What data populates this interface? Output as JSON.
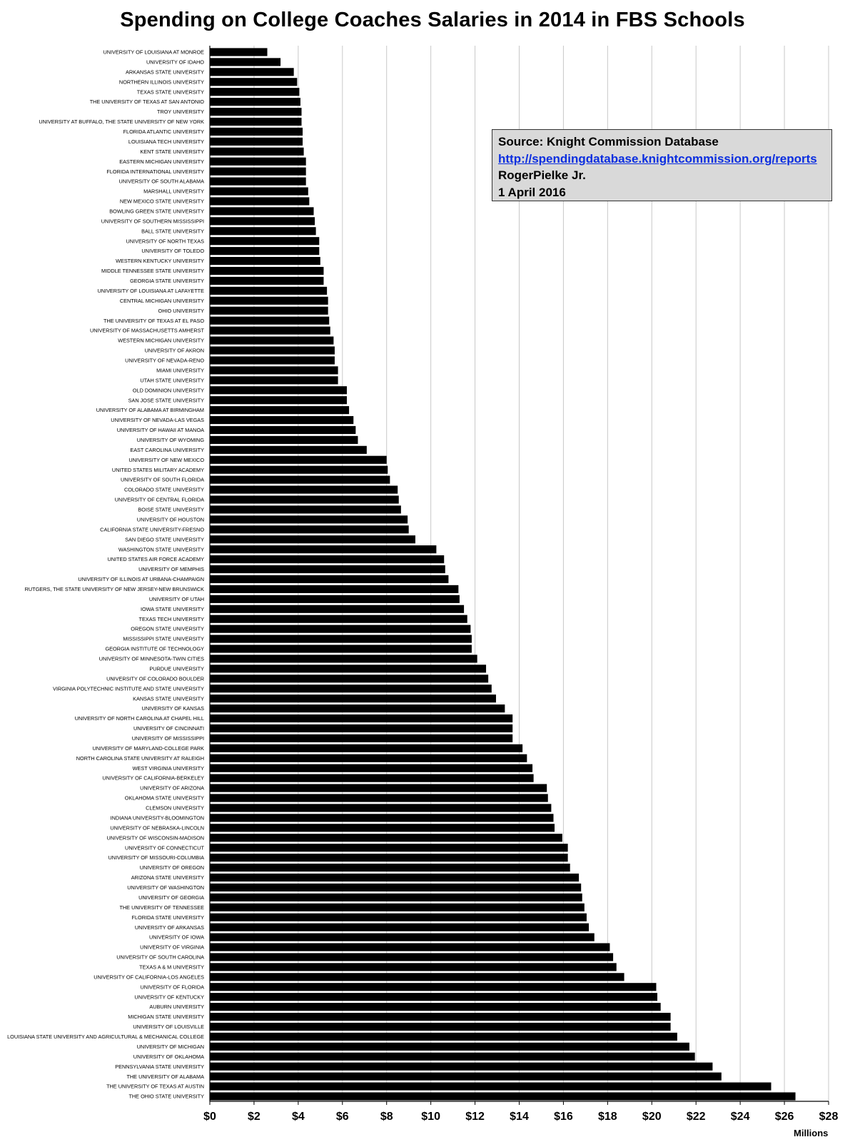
{
  "chart_data": {
    "type": "bar",
    "orientation": "horizontal",
    "title": "Spending on College Coaches Salaries in 2014 in FBS Schools",
    "xlabel": "Millions",
    "xlim": [
      0,
      28
    ],
    "x_ticks": [
      "$0",
      "$2",
      "$4",
      "$6",
      "$8",
      "$10",
      "$12",
      "$14",
      "$16",
      "$18",
      "$20",
      "$22",
      "$24",
      "$26",
      "$28"
    ],
    "grid": "vertical",
    "color": "#000000",
    "annotation": {
      "source": "Source: Knight Commission Database",
      "url": "http://spendingdatabase.knightcommission.org/reports",
      "author": "RogerPielke Jr.",
      "date": "1 April 2016"
    },
    "categories": [
      "UNIVERSITY OF LOUISIANA AT MONROE",
      "UNIVERSITY OF IDAHO",
      "ARKANSAS STATE UNIVERSITY",
      "NORTHERN ILLINOIS UNIVERSITY",
      "TEXAS STATE UNIVERSITY",
      "THE UNIVERSITY OF TEXAS AT SAN ANTONIO",
      "TROY UNIVERSITY",
      "UNIVERSITY AT BUFFALO, THE STATE UNIVERSITY OF NEW YORK",
      "FLORIDA ATLANTIC UNIVERSITY",
      "LOUISIANA TECH UNIVERSITY",
      "KENT STATE UNIVERSITY",
      "EASTERN MICHIGAN UNIVERSITY",
      "FLORIDA INTERNATIONAL UNIVERSITY",
      "UNIVERSITY OF SOUTH ALABAMA",
      "MARSHALL UNIVERSITY",
      "NEW MEXICO STATE UNIVERSITY",
      "BOWLING GREEN STATE UNIVERSITY",
      "UNIVERSITY OF SOUTHERN MISSISSIPPI",
      "BALL STATE UNIVERSITY",
      "UNIVERSITY OF NORTH TEXAS",
      "UNIVERSITY OF TOLEDO",
      "WESTERN KENTUCKY UNIVERSITY",
      "MIDDLE TENNESSEE STATE UNIVERSITY",
      "GEORGIA STATE UNIVERSITY",
      "UNIVERSITY OF LOUISIANA AT LAFAYETTE",
      "CENTRAL MICHIGAN UNIVERSITY",
      "OHIO UNIVERSITY",
      "THE UNIVERSITY OF TEXAS AT EL PASO",
      "UNIVERSITY OF MASSACHUSETTS AMHERST",
      "WESTERN MICHIGAN UNIVERSITY",
      "UNIVERSITY OF AKRON",
      "UNIVERSITY OF NEVADA-RENO",
      "MIAMI UNIVERSITY",
      "UTAH STATE UNIVERSITY",
      "OLD DOMINION UNIVERSITY",
      "SAN JOSE STATE UNIVERSITY",
      "UNIVERSITY OF ALABAMA AT BIRMINGHAM",
      "UNIVERSITY OF NEVADA-LAS VEGAS",
      "UNIVERSITY OF HAWAII AT MANOA",
      "UNIVERSITY OF WYOMING",
      "EAST CAROLINA UNIVERSITY",
      "UNIVERSITY OF NEW MEXICO",
      "UNITED STATES MILITARY ACADEMY",
      "UNIVERSITY OF SOUTH FLORIDA",
      "COLORADO STATE UNIVERSITY",
      "UNIVERSITY OF CENTRAL FLORIDA",
      "BOISE STATE UNIVERSITY",
      "UNIVERSITY OF HOUSTON",
      "CALIFORNIA STATE UNIVERSITY-FRESNO",
      "SAN DIEGO STATE UNIVERSITY",
      "WASHINGTON STATE UNIVERSITY",
      "UNITED STATES AIR FORCE ACADEMY",
      "UNIVERSITY OF MEMPHIS",
      "UNIVERSITY OF ILLINOIS AT URBANA-CHAMPAIGN",
      "RUTGERS, THE STATE UNIVERSITY OF NEW JERSEY-NEW BRUNSWICK",
      "UNIVERSITY OF UTAH",
      "IOWA STATE UNIVERSITY",
      "TEXAS TECH UNIVERSITY",
      "OREGON STATE UNIVERSITY",
      "MISSISSIPPI STATE UNIVERSITY",
      "GEORGIA INSTITUTE OF TECHNOLOGY",
      "UNIVERSITY OF MINNESOTA-TWIN CITIES",
      "PURDUE UNIVERSITY",
      "UNIVERSITY OF COLORADO BOULDER",
      "VIRGINIA POLYTECHNIC INSTITUTE AND STATE UNIVERSITY",
      "KANSAS STATE UNIVERSITY",
      "UNIVERSITY OF KANSAS",
      "UNIVERSITY OF NORTH CAROLINA AT CHAPEL HILL",
      "UNIVERSITY OF CINCINNATI",
      "UNIVERSITY OF MISSISSIPPI",
      "UNIVERSITY OF MARYLAND-COLLEGE PARK",
      "NORTH CAROLINA STATE UNIVERSITY AT RALEIGH",
      "WEST VIRGINIA UNIVERSITY",
      "UNIVERSITY OF CALIFORNIA-BERKELEY",
      "UNIVERSITY OF ARIZONA",
      "OKLAHOMA STATE UNIVERSITY",
      "CLEMSON UNIVERSITY",
      "INDIANA UNIVERSITY-BLOOMINGTON",
      "UNIVERSITY OF NEBRASKA-LINCOLN",
      "UNIVERSITY OF WISCONSIN-MADISON",
      "UNIVERSITY OF CONNECTICUT",
      "UNIVERSITY OF MISSOURI-COLUMBIA",
      "UNIVERSITY OF OREGON",
      "ARIZONA STATE UNIVERSITY",
      "UNIVERSITY OF WASHINGTON",
      "UNIVERSITY OF GEORGIA",
      "THE UNIVERSITY OF TENNESSEE",
      "FLORIDA STATE UNIVERSITY",
      "UNIVERSITY OF ARKANSAS",
      "UNIVERSITY OF IOWA",
      "UNIVERSITY OF VIRGINIA",
      "UNIVERSITY OF SOUTH CAROLINA",
      "TEXAS A & M UNIVERSITY",
      "UNIVERSITY OF CALIFORNIA-LOS ANGELES",
      "UNIVERSITY OF FLORIDA",
      "UNIVERSITY OF KENTUCKY",
      "AUBURN UNIVERSITY",
      "MICHIGAN STATE UNIVERSITY",
      "UNIVERSITY OF LOUISVILLE",
      "LOUISIANA STATE UNIVERSITY AND AGRICULTURAL & MECHANICAL COLLEGE",
      "UNIVERSITY OF MICHIGAN",
      "UNIVERSITY OF OKLAHOMA",
      "PENNSYLVANIA STATE UNIVERSITY",
      "THE UNIVERSITY OF ALABAMA",
      "THE UNIVERSITY OF TEXAS AT AUSTIN",
      "THE OHIO STATE UNIVERSITY"
    ],
    "values": [
      2.6,
      3.2,
      3.8,
      3.95,
      4.05,
      4.1,
      4.15,
      4.15,
      4.2,
      4.2,
      4.25,
      4.35,
      4.35,
      4.35,
      4.45,
      4.5,
      4.7,
      4.75,
      4.8,
      4.95,
      4.95,
      5.0,
      5.15,
      5.15,
      5.3,
      5.35,
      5.35,
      5.4,
      5.45,
      5.6,
      5.65,
      5.65,
      5.8,
      5.8,
      6.2,
      6.2,
      6.3,
      6.5,
      6.6,
      6.7,
      7.1,
      8.0,
      8.05,
      8.15,
      8.5,
      8.55,
      8.65,
      8.95,
      9.0,
      9.3,
      10.25,
      10.6,
      10.65,
      10.8,
      11.25,
      11.3,
      11.5,
      11.65,
      11.8,
      11.85,
      11.85,
      12.1,
      12.5,
      12.6,
      12.75,
      12.95,
      13.35,
      13.7,
      13.7,
      13.7,
      14.15,
      14.35,
      14.6,
      14.65,
      15.25,
      15.3,
      15.45,
      15.55,
      15.6,
      15.95,
      16.2,
      16.2,
      16.3,
      16.7,
      16.8,
      16.85,
      16.95,
      17.05,
      17.15,
      17.4,
      18.1,
      18.25,
      18.4,
      18.75,
      20.2,
      20.25,
      20.4,
      20.85,
      20.85,
      21.15,
      21.7,
      21.95,
      22.75,
      23.15,
      25.4,
      26.5
    ]
  }
}
